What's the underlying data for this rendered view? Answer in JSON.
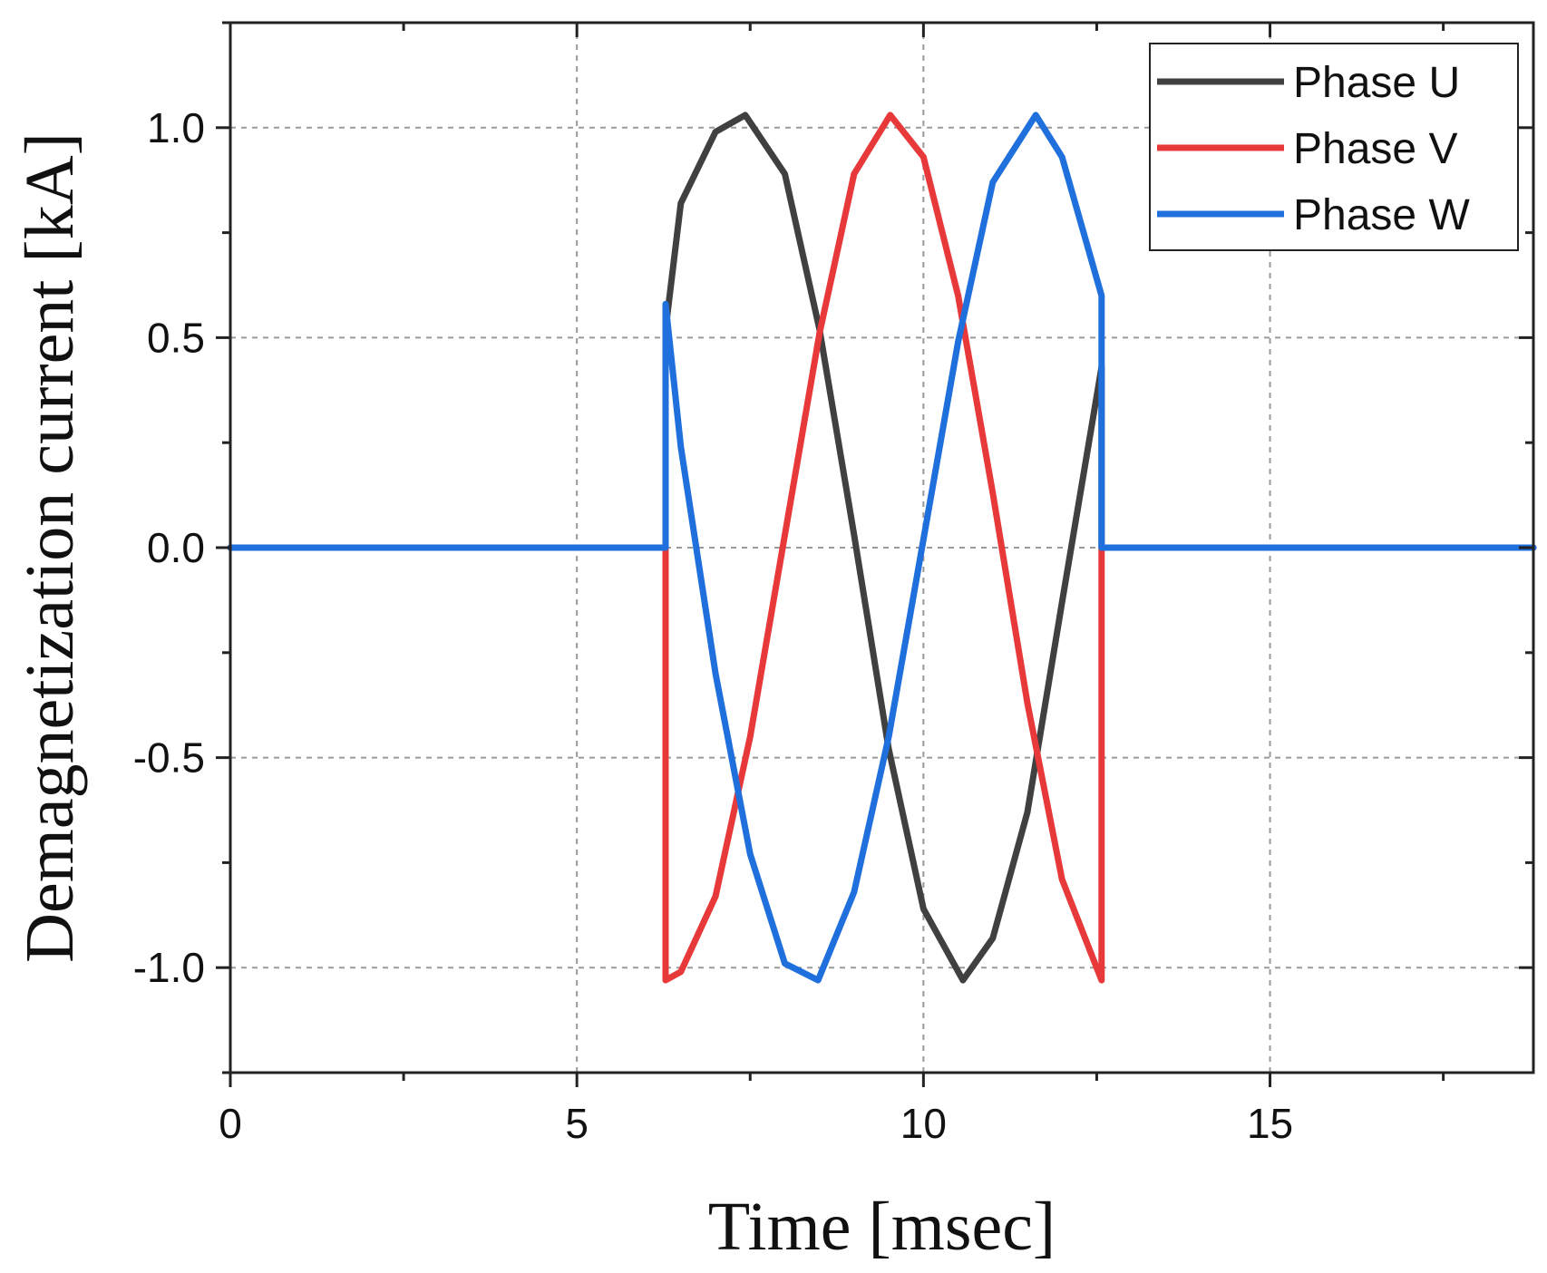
{
  "chart_data": {
    "type": "line",
    "title": "",
    "xlabel": "Time [msec]",
    "ylabel": "Demagnetization current [kA]",
    "xlim": [
      0,
      18.8
    ],
    "ylim": [
      -1.25,
      1.25
    ],
    "xticks": [
      0,
      5,
      10,
      15
    ],
    "xtick_labels": [
      "0",
      "5",
      "10",
      "15"
    ],
    "yticks": [
      -1.0,
      -0.5,
      0.0,
      0.5,
      1.0
    ],
    "ytick_labels": [
      "-1.0",
      "-0.5",
      "0.0",
      "0.5",
      "1.0"
    ],
    "grid": true,
    "legend_position": "top-right",
    "pulse": {
      "start_ms": 6.28,
      "end_ms": 12.57,
      "amplitude_kA": 1.03,
      "period_ms": 6.28
    },
    "series": [
      {
        "name": "Phase U",
        "color": "#404040",
        "x": [
          0,
          6.28,
          6.28,
          6.5,
          7.0,
          7.43,
          8.0,
          8.5,
          9.0,
          9.5,
          10.0,
          10.57,
          11.0,
          11.5,
          12.0,
          12.57,
          12.57,
          18.8
        ],
        "y": [
          0,
          0,
          0.52,
          0.82,
          0.99,
          1.03,
          0.89,
          0.52,
          0.03,
          -0.48,
          -0.86,
          -1.03,
          -0.93,
          -0.63,
          -0.13,
          0.43,
          0,
          0
        ]
      },
      {
        "name": "Phase V",
        "color": "#e8393a",
        "x": [
          0,
          6.28,
          6.28,
          6.5,
          7.0,
          7.5,
          8.0,
          8.5,
          9.0,
          9.52,
          10.0,
          10.5,
          11.0,
          11.5,
          12.0,
          12.57,
          12.57,
          18.8
        ],
        "y": [
          0,
          0,
          -1.03,
          -1.01,
          -0.83,
          -0.45,
          0.03,
          0.51,
          0.89,
          1.03,
          0.93,
          0.6,
          0.13,
          -0.37,
          -0.79,
          -1.03,
          0,
          0
        ]
      },
      {
        "name": "Phase W",
        "color": "#1f6fdc",
        "x": [
          0,
          6.28,
          6.28,
          6.5,
          7.0,
          7.5,
          8.0,
          8.48,
          9.0,
          9.5,
          10.0,
          10.5,
          11.0,
          11.62,
          12.0,
          12.57,
          12.57,
          18.8
        ],
        "y": [
          0,
          0,
          0.58,
          0.24,
          -0.3,
          -0.73,
          -0.99,
          -1.03,
          -0.82,
          -0.45,
          0.02,
          0.49,
          0.87,
          1.03,
          0.93,
          0.6,
          0,
          0
        ]
      }
    ]
  }
}
